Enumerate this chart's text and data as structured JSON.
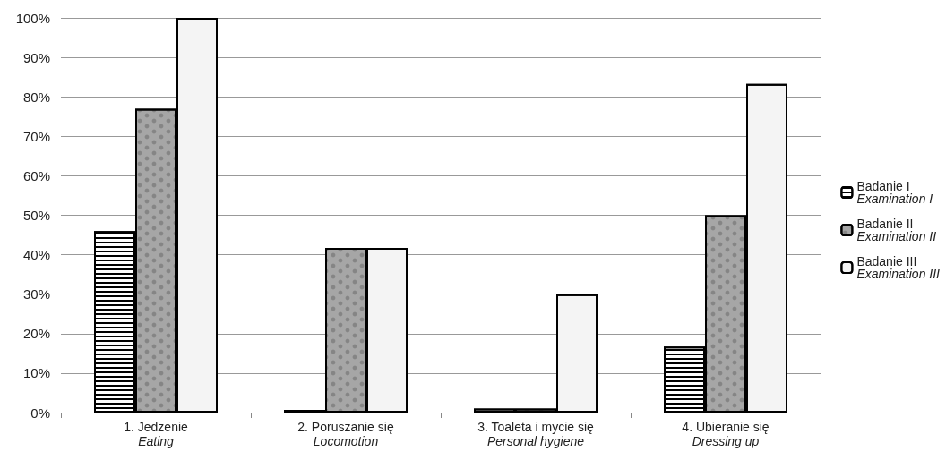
{
  "chart_data": {
    "type": "bar",
    "categories": [
      "1. Jedzenie\nEating",
      "2. Poruszanie się\nLocomotion",
      "3. Toaleta i mycie się\nPersonal hygiene",
      "4. Ubieranie się\nDressing up"
    ],
    "series": [
      {
        "name": "Badanie I\nExamination I",
        "color": "#ffffff",
        "values": [
          46,
          0.7,
          1,
          16.7
        ]
      },
      {
        "name": "Badanie II\nExamination II",
        "color": "#a6a6a6",
        "values": [
          77,
          41.7,
          1,
          50
        ]
      },
      {
        "name": "Badanie III\nExamination III",
        "color": "#f4f4f4",
        "values": [
          100,
          41.7,
          30,
          83.3
        ]
      }
    ],
    "ylim": [
      0,
      100
    ],
    "yticks": [
      {
        "value": 0,
        "label": "0%"
      },
      {
        "value": 10,
        "label": "10%"
      },
      {
        "value": 20,
        "label": "20%"
      },
      {
        "value": 30,
        "label": "30%"
      },
      {
        "value": 40,
        "label": "40%"
      },
      {
        "value": 50,
        "label": "50%"
      },
      {
        "value": 60,
        "label": "60%"
      },
      {
        "value": 70,
        "label": "70%"
      },
      {
        "value": 80,
        "label": "80%"
      },
      {
        "value": 90,
        "label": "90%"
      },
      {
        "value": 100,
        "label": "100%"
      }
    ],
    "grid": "y",
    "legend": "right"
  }
}
